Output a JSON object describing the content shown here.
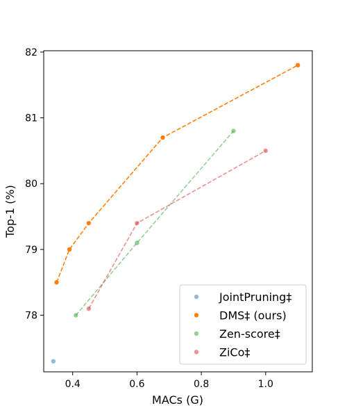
{
  "chart_data": {
    "type": "scatter",
    "title": "",
    "xlabel": "MACs (G)",
    "ylabel": "Top-1 (%)",
    "xlim": [
      0.31,
      1.145
    ],
    "ylim": [
      77.14,
      82.02
    ],
    "x_ticks": [
      0.4,
      0.6,
      0.8,
      1.0
    ],
    "x_tick_labels": [
      "0.4",
      "0.6",
      "0.8",
      "1.0"
    ],
    "y_ticks": [
      78,
      79,
      80,
      81,
      82
    ],
    "y_tick_labels": [
      "78",
      "79",
      "80",
      "81",
      "82"
    ],
    "grid": false,
    "legend_position": "lower-right",
    "series": [
      {
        "name": "JointPruning‡",
        "color": "#1f77b4",
        "alpha": 0.5,
        "connected": false,
        "points": [
          [
            0.34,
            77.3
          ]
        ]
      },
      {
        "name": "DMS‡ (ours)",
        "color": "#ff7f0e",
        "alpha": 1.0,
        "connected": true,
        "points": [
          [
            0.35,
            78.5
          ],
          [
            0.39,
            79.0
          ],
          [
            0.45,
            79.4
          ],
          [
            0.68,
            80.7
          ],
          [
            1.1,
            81.8
          ]
        ]
      },
      {
        "name": "Zen-score‡",
        "color": "#2ca02c",
        "alpha": 0.5,
        "connected": true,
        "points": [
          [
            0.41,
            78.0
          ],
          [
            0.6,
            79.1
          ],
          [
            0.9,
            80.8
          ]
        ]
      },
      {
        "name": "ZiCo‡",
        "color": "#d62728",
        "alpha": 0.5,
        "connected": true,
        "points": [
          [
            0.45,
            78.1
          ],
          [
            0.6,
            79.4
          ],
          [
            1.0,
            80.5
          ]
        ]
      }
    ]
  }
}
